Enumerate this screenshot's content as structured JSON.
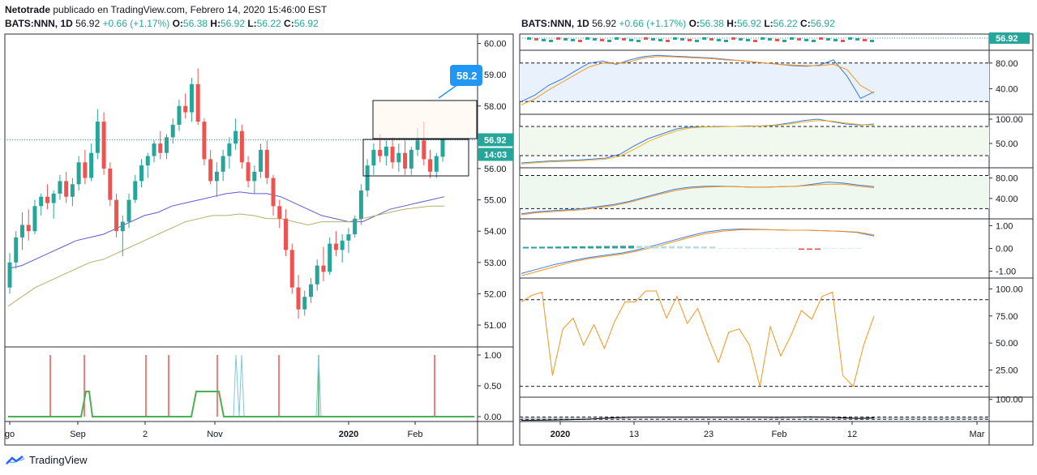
{
  "header": {
    "author": "Netotrade",
    "published": "publicado en TradingView.com, Febrero 14, 2020 15:46:00 EST"
  },
  "left": {
    "symbol": "BATS:NNN, 1D",
    "last": "56.92",
    "change": "+0.66 (+1.17%)",
    "o_label": "O:",
    "o": "56.38",
    "h_label": "H:",
    "h": "56.92",
    "l_label": "L:",
    "l": "56.22",
    "c_label": "C:",
    "c": "56.92",
    "price_ticks": [
      "60.00",
      "59.00",
      "58.00",
      "57.00",
      "56.00",
      "55.00",
      "54.00",
      "53.00",
      "52.00",
      "51.00"
    ],
    "price_tag": "56.92",
    "countdown": "14:03",
    "target_label": "58.2",
    "ind_ticks": [
      "1.00",
      "0.50",
      "0.00"
    ],
    "time_labels": [
      "go",
      "Sep",
      "2",
      "Nov",
      "2020",
      "Feb"
    ]
  },
  "right": {
    "symbol": "BATS:NNN, 1D",
    "last": "56.92",
    "change": "+0.66 (+1.17%)",
    "o_label": "O:",
    "o": "56.38",
    "h_label": "H:",
    "h": "56.92",
    "l_label": "L:",
    "l": "56.22",
    "c_label": "C:",
    "c": "56.92",
    "price_tag": "56.92",
    "p1_ticks": [
      "80.00",
      "40.00"
    ],
    "p2_ticks": [
      "100.00",
      "50.00"
    ],
    "p3_ticks": [
      "80.00",
      "40.00"
    ],
    "p4_ticks": [
      "1.00",
      "0.00",
      "-1.00"
    ],
    "p5_ticks": [
      "100.00",
      "75.00",
      "50.00",
      "25.00"
    ],
    "p6_ticks": [
      "100.00"
    ],
    "time_labels": [
      "2020",
      "13",
      "23",
      "Feb",
      "12",
      "Mar"
    ]
  },
  "footer": {
    "brand": "TradingView"
  },
  "colors": {
    "up": "#26a69a",
    "down": "#ef5350",
    "ma_blue": "#5b5bd6",
    "ma_olive": "#b5b16a",
    "osc_orange": "#f7931a",
    "line_blue": "#3d7be0",
    "green": "#4caf50",
    "cyan": "#7ec8e3"
  },
  "chart_data": [
    {
      "type": "candlestick",
      "title": "BATS:NNN, 1D",
      "ylim": [
        50.3,
        60.3
      ],
      "grid": false,
      "candles": [
        [
          52.2,
          53.3,
          52.0,
          53.0
        ],
        [
          53.0,
          54.0,
          52.8,
          53.8
        ],
        [
          53.8,
          54.6,
          53.4,
          54.2
        ],
        [
          54.2,
          54.7,
          53.7,
          54.0
        ],
        [
          54.0,
          55.0,
          53.9,
          54.8
        ],
        [
          54.8,
          55.2,
          54.5,
          55.1
        ],
        [
          55.1,
          55.5,
          54.7,
          54.9
        ],
        [
          54.9,
          55.3,
          54.4,
          55.2
        ],
        [
          55.2,
          55.8,
          55.0,
          55.6
        ],
        [
          55.6,
          55.9,
          54.9,
          55.1
        ],
        [
          55.1,
          55.7,
          54.8,
          55.5
        ],
        [
          55.5,
          56.4,
          55.3,
          56.2
        ],
        [
          56.2,
          56.6,
          55.5,
          55.7
        ],
        [
          55.7,
          56.8,
          55.6,
          56.5
        ],
        [
          56.5,
          57.9,
          56.3,
          57.5
        ],
        [
          57.5,
          57.8,
          55.8,
          56.0
        ],
        [
          56.0,
          56.2,
          54.8,
          55.0
        ],
        [
          55.0,
          55.2,
          53.8,
          54.0
        ],
        [
          54.0,
          54.5,
          53.2,
          54.3
        ],
        [
          54.3,
          55.2,
          54.1,
          55.0
        ],
        [
          55.0,
          55.8,
          54.9,
          55.6
        ],
        [
          55.6,
          56.3,
          55.4,
          56.1
        ],
        [
          56.1,
          56.5,
          55.7,
          56.4
        ],
        [
          56.4,
          56.9,
          56.2,
          56.8
        ],
        [
          56.8,
          57.2,
          56.3,
          56.5
        ],
        [
          56.5,
          57.1,
          56.3,
          57.0
        ],
        [
          57.0,
          57.6,
          56.8,
          57.4
        ],
        [
          57.4,
          58.2,
          57.2,
          58.0
        ],
        [
          58.0,
          58.4,
          57.6,
          57.8
        ],
        [
          57.8,
          58.9,
          57.5,
          58.7
        ],
        [
          58.7,
          59.2,
          57.4,
          57.5
        ],
        [
          57.5,
          57.6,
          56.1,
          56.3
        ],
        [
          56.3,
          56.6,
          55.5,
          55.6
        ],
        [
          55.6,
          56.2,
          55.1,
          55.9
        ],
        [
          55.9,
          56.6,
          55.6,
          56.4
        ],
        [
          56.4,
          57.0,
          56.0,
          56.8
        ],
        [
          56.8,
          57.6,
          56.6,
          57.2
        ],
        [
          57.2,
          57.4,
          56.0,
          56.2
        ],
        [
          56.2,
          56.4,
          55.4,
          55.6
        ],
        [
          55.6,
          56.1,
          55.2,
          55.9
        ],
        [
          55.9,
          56.8,
          55.7,
          56.6
        ],
        [
          56.6,
          56.9,
          55.5,
          55.7
        ],
        [
          55.7,
          55.8,
          54.5,
          54.8
        ],
        [
          54.8,
          55.0,
          54.1,
          54.4
        ],
        [
          54.4,
          54.7,
          53.2,
          53.4
        ],
        [
          53.4,
          53.6,
          52.0,
          52.2
        ],
        [
          52.2,
          52.6,
          51.2,
          51.5
        ],
        [
          51.5,
          52.1,
          51.3,
          51.9
        ],
        [
          51.9,
          52.5,
          51.7,
          52.3
        ],
        [
          52.3,
          53.1,
          52.1,
          52.9
        ],
        [
          52.9,
          53.5,
          52.4,
          52.7
        ],
        [
          52.7,
          53.8,
          52.6,
          53.6
        ],
        [
          53.6,
          54.0,
          53.2,
          53.4
        ],
        [
          53.4,
          53.9,
          53.0,
          53.7
        ],
        [
          53.7,
          54.1,
          53.3,
          53.9
        ],
        [
          53.9,
          54.5,
          53.8,
          54.4
        ],
        [
          54.4,
          55.5,
          54.2,
          55.3
        ],
        [
          55.3,
          56.3,
          55.1,
          56.1
        ],
        [
          56.1,
          56.8,
          55.8,
          56.6
        ],
        [
          56.6,
          57.1,
          56.2,
          56.4
        ],
        [
          56.4,
          56.9,
          56.1,
          56.7
        ],
        [
          56.7,
          57.0,
          56.0,
          56.2
        ],
        [
          56.2,
          56.8,
          55.9,
          56.5
        ],
        [
          56.5,
          56.9,
          55.8,
          56.0
        ],
        [
          56.0,
          56.7,
          55.8,
          56.6
        ],
        [
          56.6,
          57.3,
          56.4,
          56.9
        ],
        [
          56.9,
          57.5,
          56.1,
          56.3
        ],
        [
          56.3,
          56.6,
          55.7,
          55.9
        ],
        [
          55.9,
          56.5,
          55.7,
          56.4
        ],
        [
          56.38,
          56.92,
          56.22,
          56.92
        ]
      ],
      "ma_blue": [
        52.8,
        52.9,
        53.1,
        53.3,
        53.5,
        53.7,
        53.8,
        53.9,
        54.1,
        54.3,
        54.5,
        54.6,
        54.8,
        54.9,
        55.0,
        55.1,
        55.2,
        55.25,
        55.2,
        55.2,
        55.1,
        54.9,
        54.7,
        54.5,
        54.4,
        54.3,
        54.3,
        54.5,
        54.7,
        54.8,
        54.9,
        55.0,
        55.1
      ],
      "ma_olive": [
        51.6,
        51.9,
        52.2,
        52.4,
        52.6,
        52.8,
        53.0,
        53.1,
        53.3,
        53.5,
        53.7,
        53.9,
        54.1,
        54.3,
        54.4,
        54.5,
        54.5,
        54.55,
        54.5,
        54.4,
        54.4,
        54.3,
        54.2,
        54.3,
        54.3,
        54.3,
        54.4,
        54.5,
        54.6,
        54.7,
        54.75,
        54.8,
        54.8
      ]
    },
    {
      "type": "line",
      "title": "indicator",
      "ylim": [
        0,
        1
      ],
      "series": [
        {
          "values": [
            0,
            0,
            0,
            0,
            0,
            0,
            0,
            0,
            0.4,
            0,
            0,
            0,
            0,
            0,
            0,
            0,
            0.4,
            0.4,
            0,
            0,
            0,
            0,
            0,
            0,
            0,
            0,
            0,
            0,
            0,
            0,
            0,
            0,
            0,
            0,
            0,
            0,
            0,
            0,
            0,
            0,
            0,
            0,
            0,
            0,
            0,
            0,
            0,
            0,
            0,
            0,
            0,
            0,
            0,
            0,
            0,
            0,
            0,
            0,
            0,
            0,
            0,
            0,
            0,
            0,
            0,
            0,
            0,
            0,
            0,
            0
          ]
        }
      ]
    }
  ]
}
